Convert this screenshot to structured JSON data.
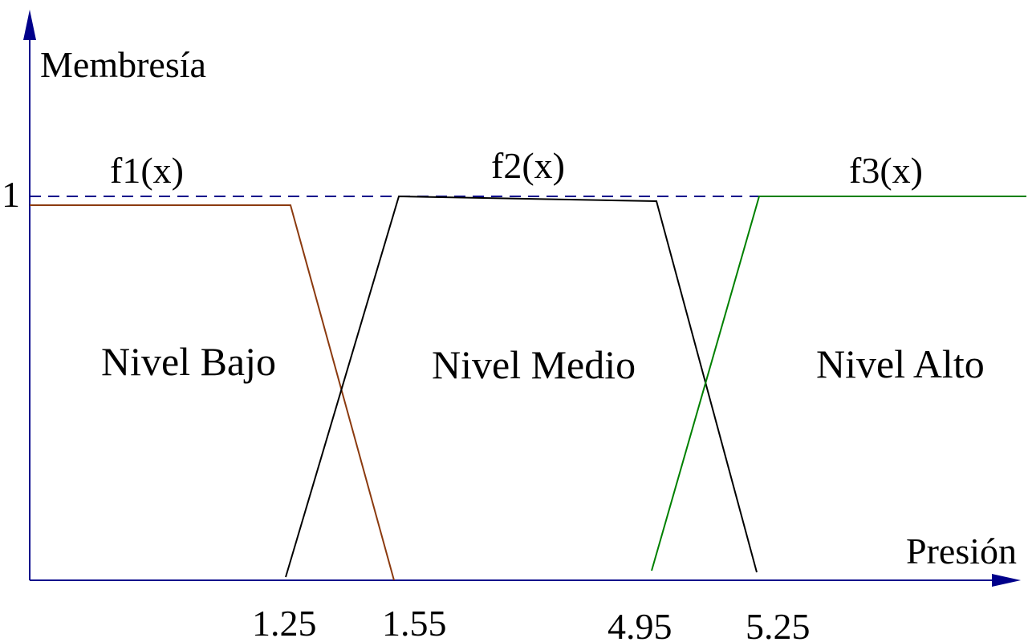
{
  "axes": {
    "y_label": "Membresía",
    "x_label": "Presión",
    "y_tick_label": "1",
    "color": "#00008b"
  },
  "functions": [
    {
      "label": "f1(x)",
      "color": "#8b3a0f"
    },
    {
      "label": "f2(x)",
      "color": "#000000"
    },
    {
      "label": "f3(x)",
      "color": "#008000"
    }
  ],
  "regions": [
    "Nivel Bajo",
    "Nivel Medio",
    "Nivel Alto"
  ],
  "ticks": [
    "1.25",
    "1.55",
    "4.95",
    "5.25"
  ]
}
